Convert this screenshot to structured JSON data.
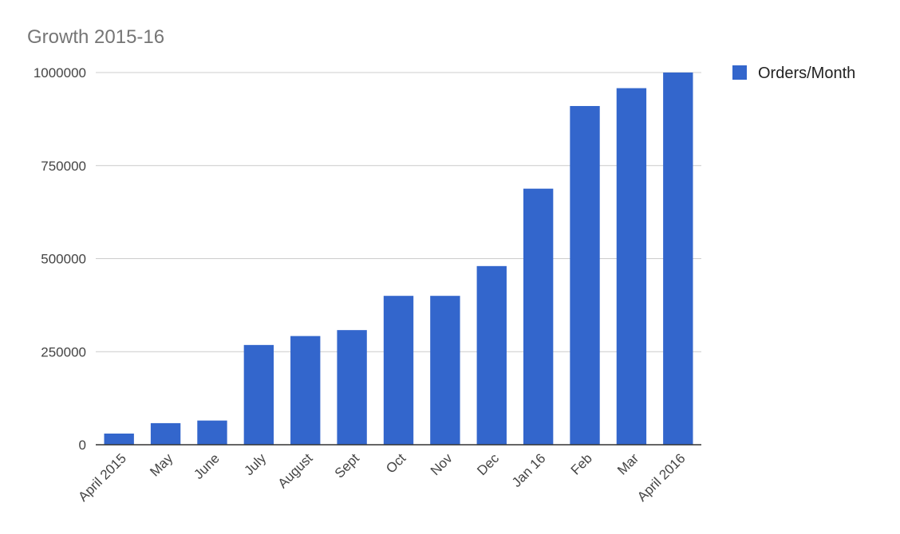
{
  "chart_data": {
    "type": "bar",
    "title": "Growth 2015-16",
    "xlabel": "",
    "ylabel": "",
    "categories": [
      "April 2015",
      "May",
      "June",
      "July",
      "August",
      "Sept",
      "Oct",
      "Nov",
      "Dec",
      "Jan 16",
      "Feb",
      "Mar",
      "April 2016"
    ],
    "series": [
      {
        "name": "Orders/Month",
        "color": "#3366cc",
        "values": [
          30000,
          58000,
          65000,
          268000,
          292000,
          308000,
          400000,
          400000,
          480000,
          688000,
          910000,
          958000,
          1000000
        ]
      }
    ],
    "ylim": [
      0,
      1000000
    ],
    "yticks": [
      0,
      250000,
      500000,
      750000,
      1000000
    ],
    "ytick_labels": [
      "0",
      "250000",
      "500000",
      "750000",
      "1000000"
    ],
    "grid": true,
    "legend": {
      "position": "right"
    }
  }
}
